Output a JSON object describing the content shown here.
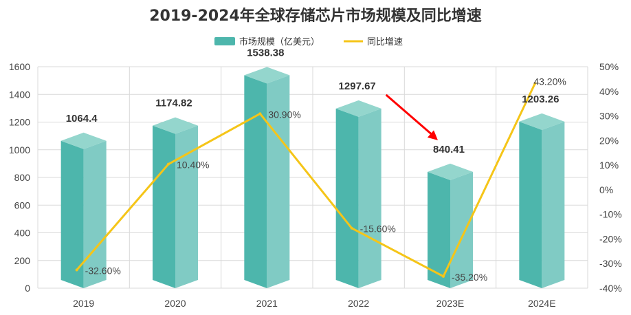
{
  "chart_data": {
    "type": "bar",
    "title": "2019-2024年全球存储芯片市场规模及同比增速",
    "categories": [
      "2019",
      "2020",
      "2021",
      "2022",
      "2023E",
      "2024E"
    ],
    "series": [
      {
        "name": "市场规模（亿美元）",
        "type": "bar",
        "axis": "left",
        "values": [
          1064.4,
          1174.82,
          1538.38,
          1297.67,
          840.41,
          1203.26
        ],
        "labels": [
          "1064.4",
          "1174.82",
          "1538.38",
          "1297.67",
          "840.41",
          "1203.26"
        ]
      },
      {
        "name": "同比增速",
        "type": "line",
        "axis": "right",
        "values": [
          -32.6,
          10.4,
          30.9,
          -15.6,
          -35.2,
          43.2
        ],
        "labels": [
          "-32.60%",
          "10.40%",
          "30.90%",
          "-15.60%",
          "-35.20%",
          "43.20%"
        ]
      }
    ],
    "y_left": {
      "min": 0,
      "max": 1600,
      "ticks": [
        "0",
        "200",
        "400",
        "600",
        "800",
        "1000",
        "1200",
        "1400",
        "1600"
      ]
    },
    "y_right": {
      "min": -40,
      "max": 50,
      "ticks": [
        "-40%",
        "-30%",
        "-20%",
        "-10%",
        "0%",
        "10%",
        "20%",
        "30%",
        "40%",
        "50%"
      ]
    },
    "highlight": {
      "category": "2023E",
      "color": "#ff0000",
      "arrow_from": "2022"
    },
    "legend_position": "top-center",
    "grid": true,
    "colors": {
      "bar_front": "#4db6ac",
      "bar_side": "#80cbc4",
      "bar_top": "#94d6cd",
      "line": "#f5c518",
      "grid": "#d9d9d9",
      "highlight": "#ff0000",
      "text": "#333333"
    }
  }
}
